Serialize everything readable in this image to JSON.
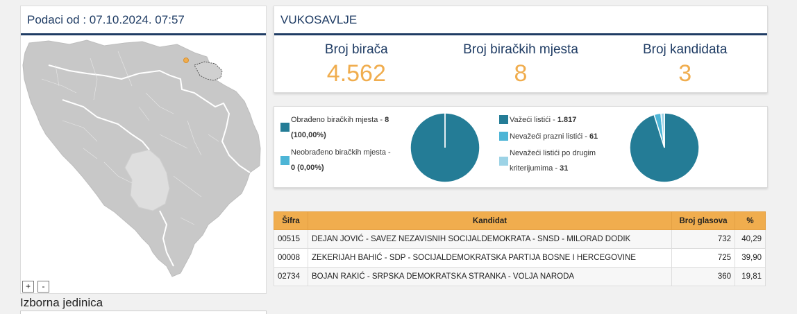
{
  "header": {
    "data_timestamp": "Podaci od : 07.10.2024. 07:57"
  },
  "map": {
    "zoom_in_label": "+",
    "zoom_out_label": "-"
  },
  "izborna_jedinica_label": "Izborna jedinica",
  "municipality": {
    "name": "VUKOSAVLJE",
    "stats": [
      {
        "label": "Broj birača",
        "value": "4.562"
      },
      {
        "label": "Broj biračkih mjesta",
        "value": "8"
      },
      {
        "label": "Broj kandidata",
        "value": "3"
      }
    ]
  },
  "processing": {
    "processed_label": "Obrađeno biračkih mjesta -",
    "processed_value": "8",
    "processed_pct": "(100,00%)",
    "unprocessed_label": "Neobrađeno biračkih mjesta -",
    "unprocessed_value": "0 (0,00%)",
    "processed_fraction": 1.0
  },
  "ballots": {
    "valid_label": "Važeći listići -",
    "valid_value": "1.817",
    "empty_label": "Nevažeći prazni listići -",
    "empty_value": "61",
    "other_label1": "Nevažeći listići po drugim",
    "other_label2": "kriterijumima -",
    "other_value": "31",
    "counts": [
      1817,
      61,
      31
    ]
  },
  "colors": {
    "accent": "#f0ad4e",
    "navy": "#1f3c64",
    "teal": "#247c96",
    "light_blue": "#4db5d6",
    "pale_blue": "#9dd3e6"
  },
  "table": {
    "headers": [
      "Šifra",
      "Kandidat",
      "Broj glasova",
      "%"
    ],
    "rows": [
      {
        "code": "00515",
        "name": "DEJAN JOVIĆ - SAVEZ NEZAVISNIH SOCIJALDEMOKRATA - SNSD - MILORAD DODIK",
        "votes": "732",
        "pct": "40,29"
      },
      {
        "code": "00008",
        "name": "ZEKERIJAH BAHIĆ - SDP - SOCIJALDEMOKRATSKA PARTIJA BOSNE I HERCEGOVINE",
        "votes": "725",
        "pct": "39,90"
      },
      {
        "code": "02734",
        "name": "BOJAN RAKIĆ - SRPSKA DEMOKRATSKA STRANKA - VOLJA NARODA",
        "votes": "360",
        "pct": "19,81"
      }
    ]
  }
}
